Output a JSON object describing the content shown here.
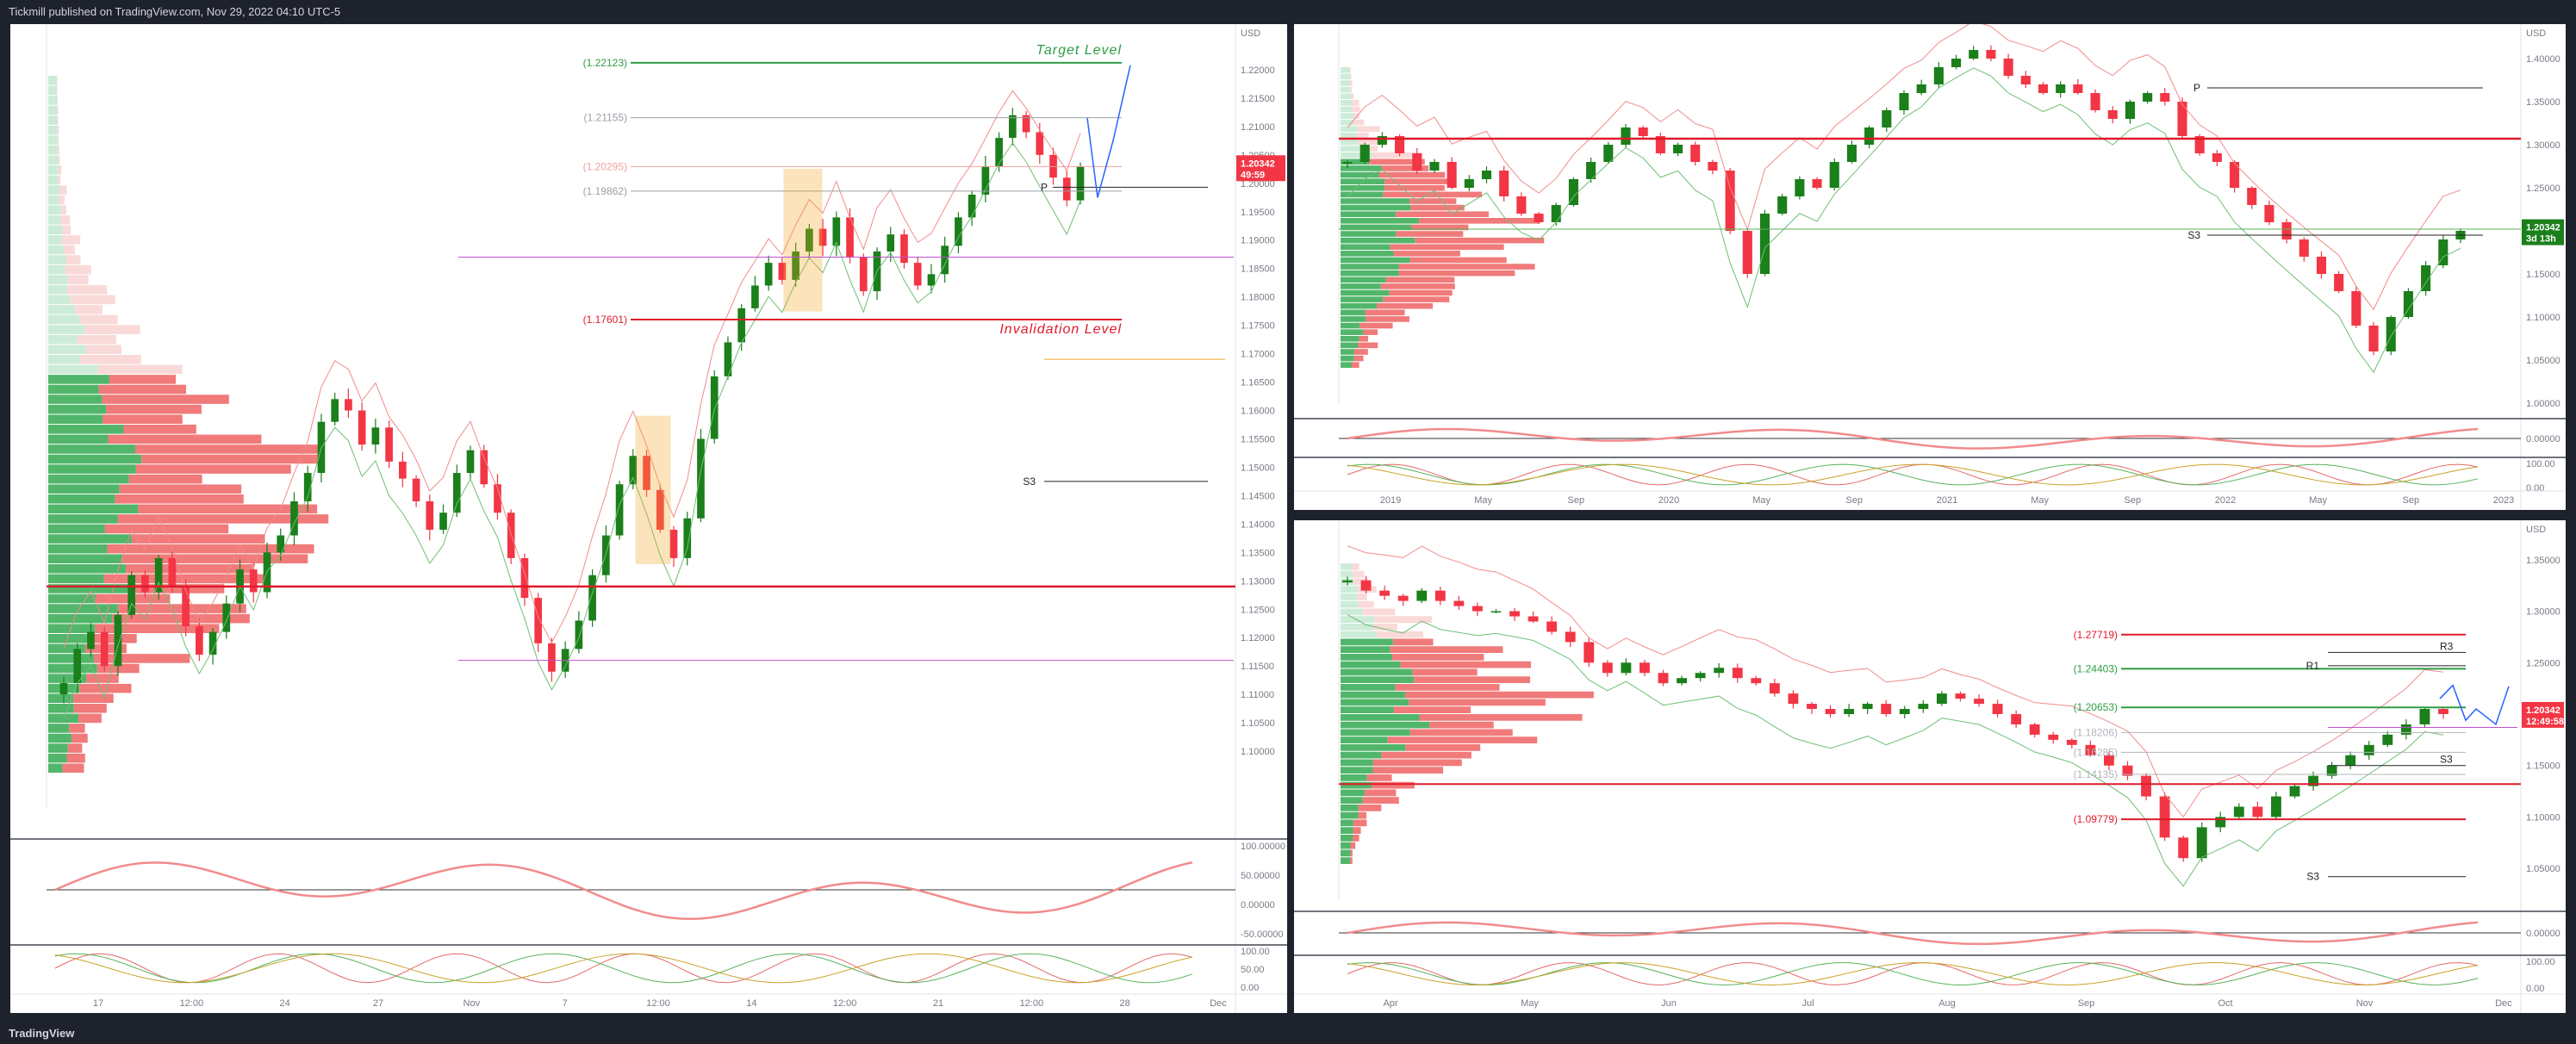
{
  "header": {
    "publisher_line": "Tickmill published on TradingView.com, Nov 29, 2022 04:10 UTC-5"
  },
  "footer": {
    "brand": "TradingView"
  },
  "colors": {
    "background": "#1e222d",
    "bull": "#089981",
    "bull_candle": "#1b7f1b",
    "bear": "#f23645",
    "green_level": "#2e9d44",
    "red_level": "#e01a2b",
    "blue_projection": "#2962ff",
    "magenta": "#c050d0",
    "orange_box": "#f5a623"
  },
  "chart_data": [
    {
      "id": "left-4h",
      "type": "candlestick",
      "currency": "USD",
      "ylim": [
        1.09,
        1.225
      ],
      "y_ticks": [
        "1.22000",
        "1.21500",
        "1.21000",
        "1.20500",
        "1.20000",
        "1.19500",
        "1.19000",
        "1.18500",
        "1.18000",
        "1.17500",
        "1.17000",
        "1.16500",
        "1.16000",
        "1.15500",
        "1.15000",
        "1.14500",
        "1.14000",
        "1.13500",
        "1.13000",
        "1.12500",
        "1.12000",
        "1.11500",
        "1.11000",
        "1.10500",
        "1.10000"
      ],
      "x_ticks": [
        "17",
        "12:00",
        "24",
        "27",
        "Nov",
        "7",
        "12:00",
        "14",
        "12:00",
        "21",
        "12:00",
        "28",
        "Dec"
      ],
      "last_price": "1.20342",
      "countdown": "49:59",
      "levels": [
        {
          "label": "(1.22123)",
          "value": 1.22123,
          "color": "#2e9d44"
        },
        {
          "label": "(1.21155)",
          "value": 1.21155,
          "color": "#9aa0a6"
        },
        {
          "label": "(1.20295)",
          "value": 1.20295,
          "color": "#f0a0a0"
        },
        {
          "label": "(1.19862)",
          "value": 1.19862,
          "color": "#9aa0a6"
        },
        {
          "label": "(1.17601)",
          "value": 1.17601,
          "color": "#e01a2b"
        }
      ],
      "annotations": {
        "target": "Target  Level",
        "invalidation": "Invalidation Level",
        "s3": "S3",
        "p": "P"
      },
      "close_series": [
        1.112,
        1.118,
        1.121,
        1.115,
        1.124,
        1.131,
        1.128,
        1.134,
        1.129,
        1.122,
        1.117,
        1.121,
        1.126,
        1.132,
        1.128,
        1.135,
        1.138,
        1.144,
        1.149,
        1.158,
        1.162,
        1.16,
        1.154,
        1.157,
        1.151,
        1.148,
        1.144,
        1.139,
        1.142,
        1.149,
        1.153,
        1.147,
        1.142,
        1.134,
        1.127,
        1.119,
        1.114,
        1.118,
        1.123,
        1.131,
        1.138,
        1.147,
        1.152,
        1.146,
        1.139,
        1.134,
        1.141,
        1.155,
        1.166,
        1.172,
        1.178,
        1.182,
        1.186,
        1.183,
        1.188,
        1.192,
        1.189,
        1.194,
        1.187,
        1.181,
        1.188,
        1.191,
        1.186,
        1.182,
        1.184,
        1.189,
        1.194,
        1.198,
        1.203,
        1.208,
        1.212,
        1.209,
        1.205,
        1.201,
        1.197,
        1.203
      ],
      "oscillator_ticks": [
        "100.00000",
        "50.00000",
        "0.00000",
        "-50.00000"
      ],
      "stoch_ticks": [
        "100.00",
        "50.00",
        "0.00"
      ]
    },
    {
      "id": "right-top-weekly",
      "type": "candlestick",
      "currency": "USD",
      "ylim": [
        1.0,
        1.43
      ],
      "y_ticks": [
        "1.40000",
        "1.35000",
        "1.30000",
        "1.25000",
        "1.20000",
        "1.15000",
        "1.10000",
        "1.05000",
        "1.00000"
      ],
      "x_ticks": [
        "2019",
        "May",
        "Sep",
        "2020",
        "May",
        "Sep",
        "2021",
        "May",
        "Sep",
        "2022",
        "May",
        "Sep",
        "2023"
      ],
      "last_price": "1.20342",
      "countdown": "3d 13h",
      "annotations": {
        "p": "P",
        "s3": "S3"
      },
      "close_series": [
        1.28,
        1.3,
        1.31,
        1.29,
        1.27,
        1.28,
        1.25,
        1.26,
        1.27,
        1.24,
        1.22,
        1.21,
        1.23,
        1.26,
        1.28,
        1.3,
        1.32,
        1.31,
        1.29,
        1.3,
        1.28,
        1.27,
        1.2,
        1.15,
        1.22,
        1.24,
        1.26,
        1.25,
        1.28,
        1.3,
        1.32,
        1.34,
        1.36,
        1.37,
        1.39,
        1.4,
        1.41,
        1.4,
        1.38,
        1.37,
        1.36,
        1.37,
        1.36,
        1.34,
        1.33,
        1.35,
        1.36,
        1.35,
        1.31,
        1.29,
        1.28,
        1.25,
        1.23,
        1.21,
        1.19,
        1.17,
        1.15,
        1.13,
        1.09,
        1.06,
        1.1,
        1.13,
        1.16,
        1.19,
        1.2
      ],
      "oscillator_ticks": [
        "0.00000"
      ],
      "stoch_ticks": [
        "100.00",
        "0.00"
      ]
    },
    {
      "id": "right-bottom-daily",
      "type": "candlestick",
      "currency": "USD",
      "ylim": [
        1.02,
        1.38
      ],
      "y_ticks": [
        "1.35000",
        "1.30000",
        "1.25000",
        "1.20000",
        "1.15000",
        "1.10000",
        "1.05000"
      ],
      "x_ticks": [
        "Apr",
        "May",
        "Jun",
        "Jul",
        "Aug",
        "Sep",
        "Oct",
        "Nov",
        "Dec"
      ],
      "last_price": "1.20342",
      "countdown": "12:49:58",
      "levels": [
        {
          "label": "(1.27719)",
          "value": 1.27719,
          "color": "#e01a2b"
        },
        {
          "label": "(1.24403)",
          "value": 1.24403,
          "color": "#2e9d44"
        },
        {
          "label": "(1.20653)",
          "value": 1.20653,
          "color": "#2e9d44"
        },
        {
          "label": "(1.18206)",
          "value": 1.18206,
          "color": "#b0b4ba"
        },
        {
          "label": "(1.16285)",
          "value": 1.16285,
          "color": "#b0b4ba"
        },
        {
          "label": "(1.14135)",
          "value": 1.14135,
          "color": "#b0b4ba"
        },
        {
          "label": "(1.09779)",
          "value": 1.09779,
          "color": "#e01a2b"
        }
      ],
      "annotations": {
        "r3": "R3",
        "r1": "R1",
        "s3_a": "S3",
        "s3_b": "S3"
      },
      "close_series": [
        1.33,
        1.32,
        1.315,
        1.31,
        1.32,
        1.31,
        1.305,
        1.3,
        1.3,
        1.295,
        1.29,
        1.28,
        1.27,
        1.25,
        1.24,
        1.25,
        1.24,
        1.23,
        1.235,
        1.24,
        1.245,
        1.235,
        1.23,
        1.22,
        1.21,
        1.205,
        1.2,
        1.205,
        1.21,
        1.2,
        1.205,
        1.21,
        1.22,
        1.215,
        1.21,
        1.2,
        1.19,
        1.18,
        1.175,
        1.17,
        1.16,
        1.15,
        1.14,
        1.12,
        1.08,
        1.06,
        1.09,
        1.1,
        1.11,
        1.1,
        1.12,
        1.13,
        1.14,
        1.15,
        1.16,
        1.17,
        1.18,
        1.19,
        1.205,
        1.2
      ],
      "oscillator_ticks": [
        "0.00000"
      ],
      "stoch_ticks": [
        "100.00",
        "0.00"
      ]
    }
  ]
}
